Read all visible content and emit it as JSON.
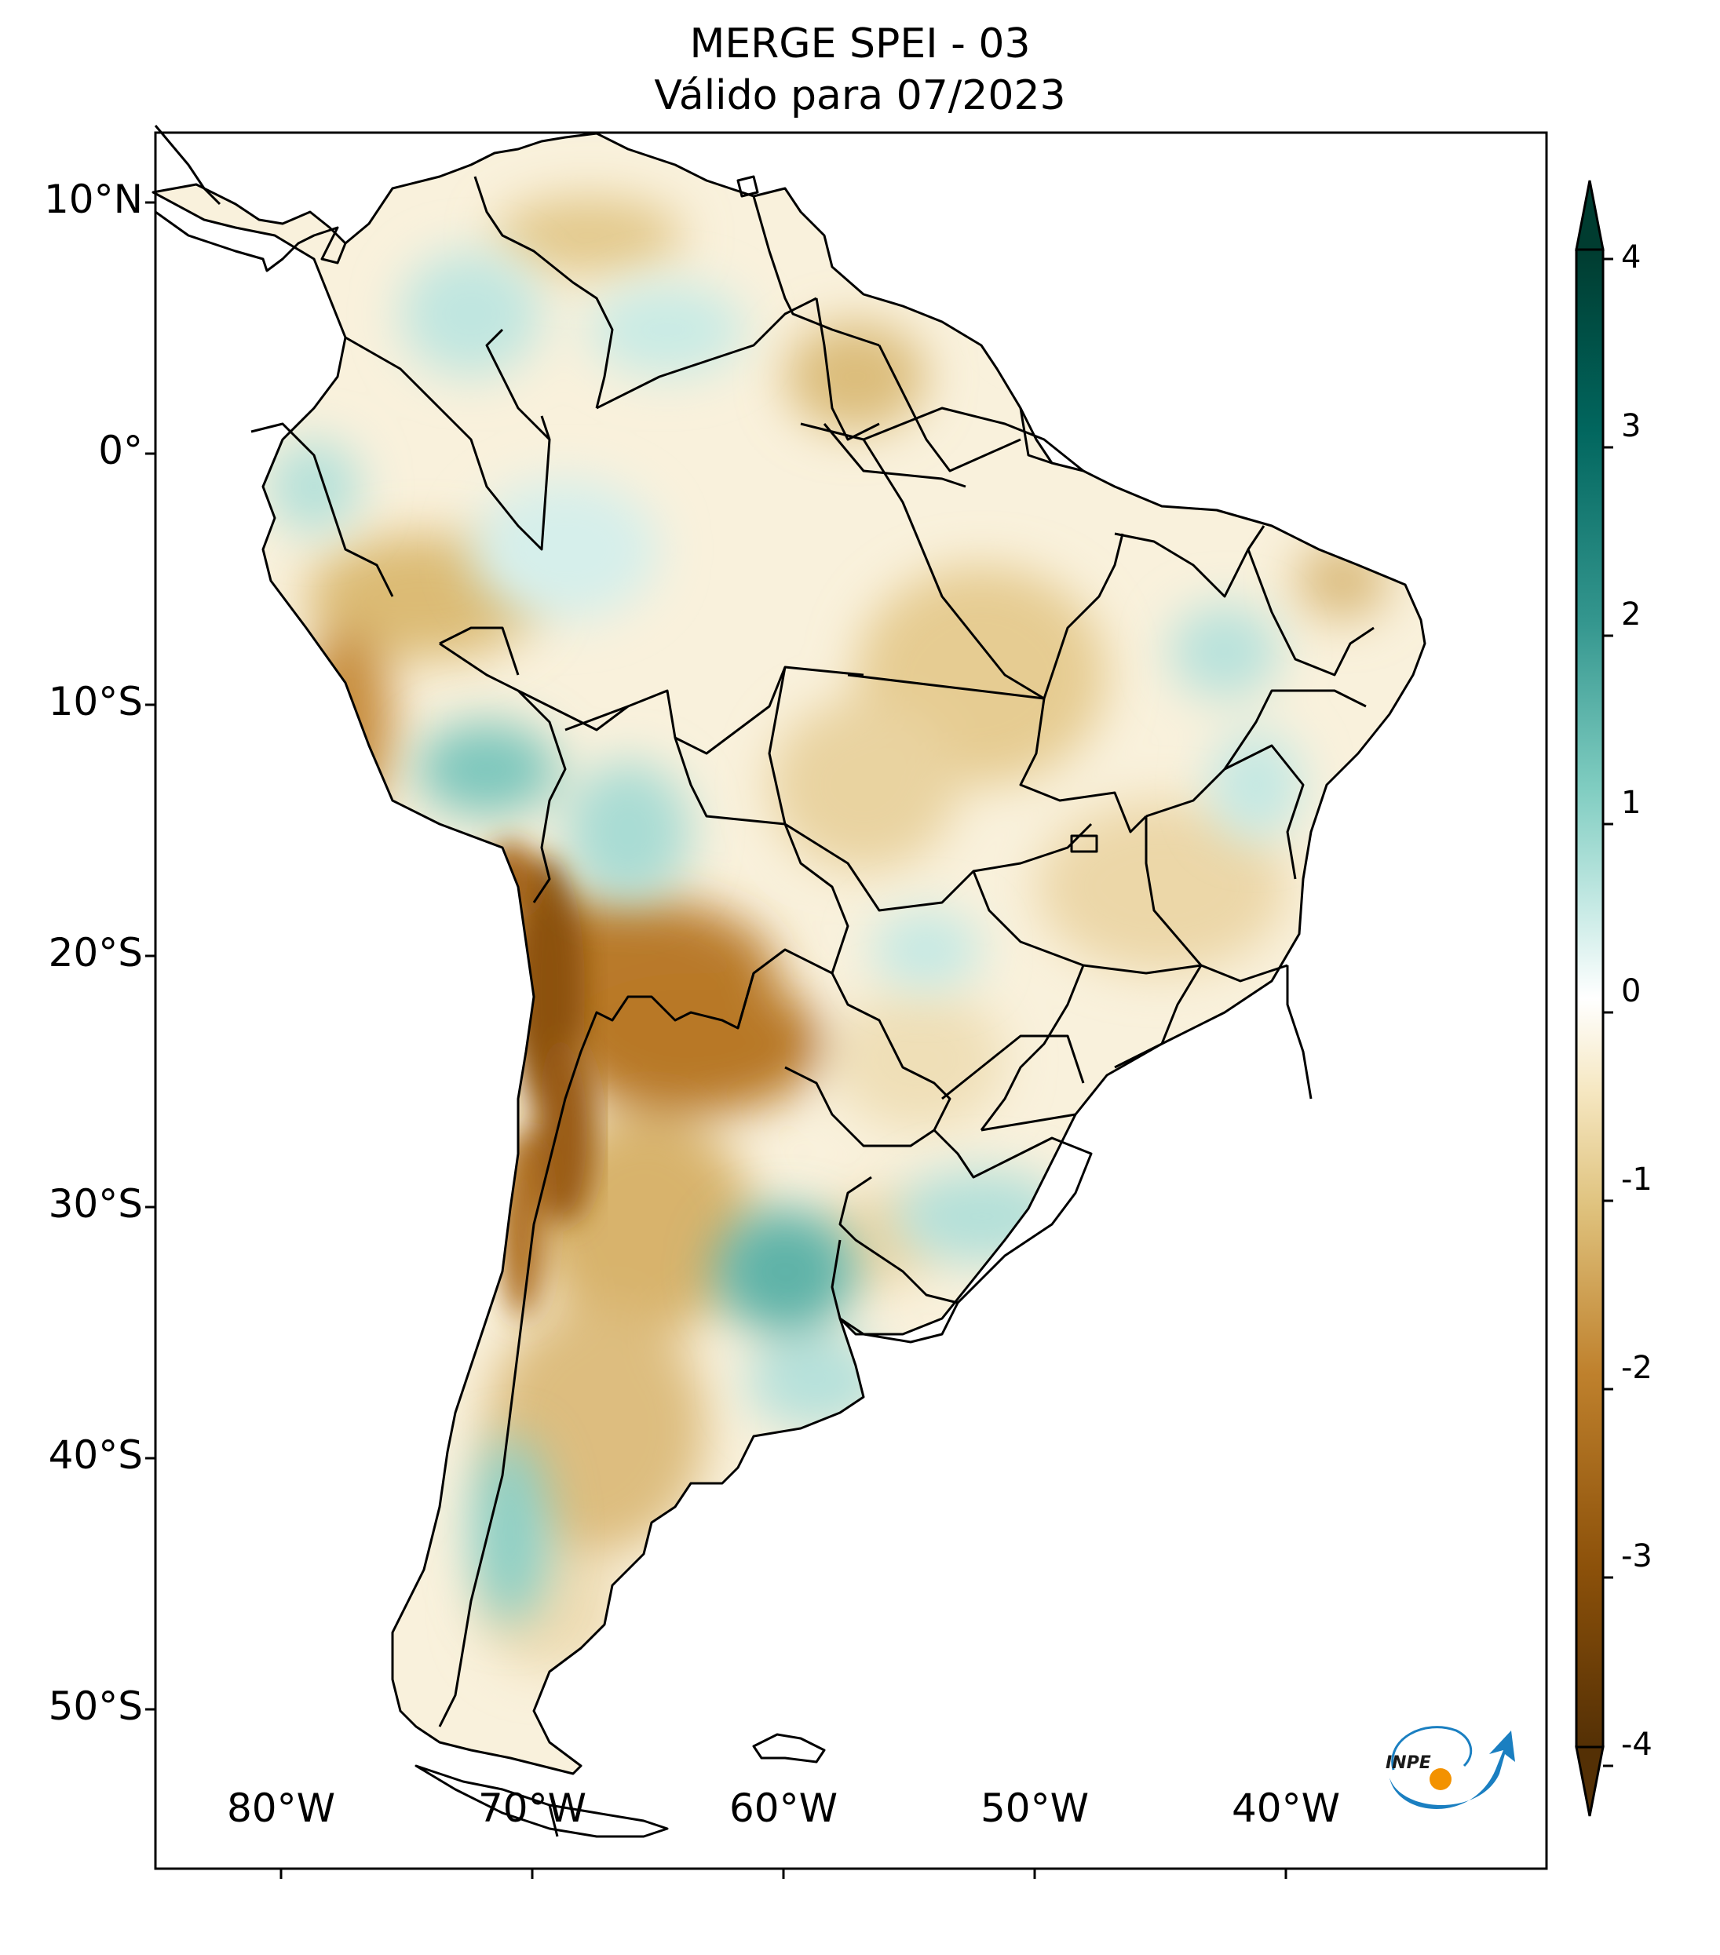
{
  "title": {
    "line1": "MERGE   SPEI - 03",
    "line2": "Válido para 07/2023"
  },
  "axes": {
    "lat_ticks": [
      "10°N",
      "0°",
      "10°S",
      "20°S",
      "30°S",
      "40°S",
      "50°S"
    ],
    "lon_ticks": [
      "80°W",
      "70°W",
      "60°W",
      "50°W",
      "40°W"
    ]
  },
  "colorbar": {
    "ticks": [
      "4",
      "3",
      "2",
      "1",
      "0",
      "-1",
      "-2",
      "-3",
      "-4"
    ],
    "colors": {
      "dry_extreme": "#543005",
      "dry_strong": "#8c510a",
      "dry_moderate": "#bf812d",
      "dry_mild": "#dfc27d",
      "dry_slight": "#f6e8c3",
      "neutral": "#ffffff",
      "wet_slight": "#c7eae5",
      "wet_mild": "#80cdc1",
      "wet_moderate": "#35978f",
      "wet_strong": "#01665e",
      "wet_extreme": "#003c30"
    }
  },
  "logo": {
    "text": "INPE",
    "colors": {
      "arrow": "#1a7fc1",
      "dot": "#f39200"
    }
  }
}
